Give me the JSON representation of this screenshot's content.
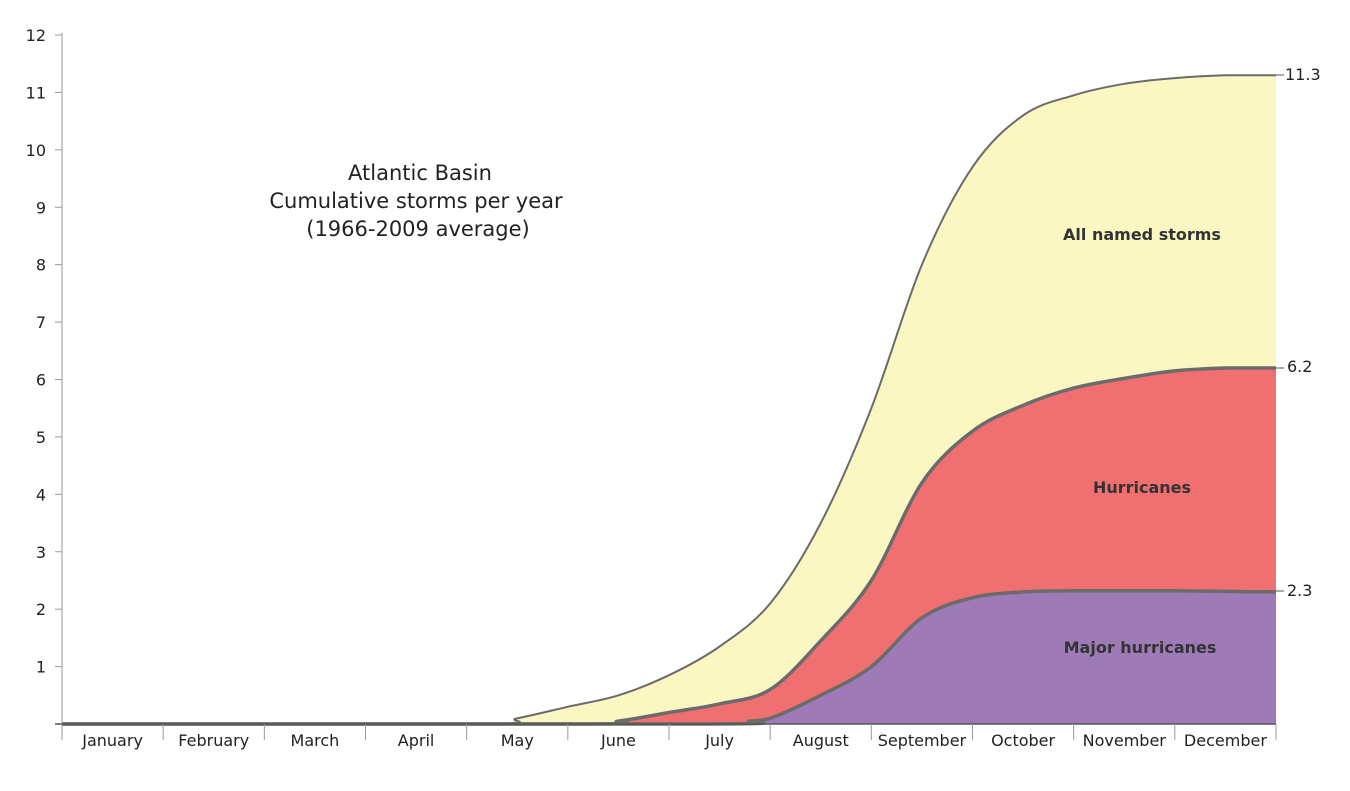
{
  "chart_data": {
    "type": "area",
    "stacked": false,
    "title_lines": [
      "Atlantic Basin",
      "Cumulative storms per year",
      "(1966-2009 average)"
    ],
    "xlabel": "",
    "ylabel": "",
    "categories": [
      "January",
      "February",
      "March",
      "April",
      "May",
      "June",
      "July",
      "August",
      "September",
      "October",
      "November",
      "December"
    ],
    "ylim": [
      0,
      12
    ],
    "y_ticks": [
      1,
      2,
      3,
      4,
      5,
      6,
      7,
      8,
      9,
      10,
      11,
      12
    ],
    "grid": false,
    "series": [
      {
        "name": "All named storms",
        "color": "#fbf7c2",
        "x": [
          0,
          4.1,
          4.5,
          5,
          5.5,
          6,
          6.5,
          7,
          7.5,
          8,
          8.5,
          9,
          9.5,
          10,
          10.5,
          11,
          11.5,
          12
        ],
        "values": [
          0,
          0,
          0.1,
          0.3,
          0.5,
          0.85,
          1.35,
          2.1,
          3.5,
          5.5,
          8.0,
          9.7,
          10.6,
          10.95,
          11.15,
          11.25,
          11.3,
          11.3
        ]
      },
      {
        "name": "Hurricanes",
        "color": "#f07072",
        "x": [
          0,
          5.1,
          5.5,
          6,
          6.5,
          7,
          7.5,
          8,
          8.5,
          9,
          9.5,
          10,
          10.5,
          11,
          11.5,
          12
        ],
        "values": [
          0,
          0,
          0.05,
          0.2,
          0.35,
          0.6,
          1.45,
          2.5,
          4.2,
          5.1,
          5.55,
          5.85,
          6.02,
          6.15,
          6.2,
          6.2
        ]
      },
      {
        "name": "Major hurricanes",
        "color": "#9e7bb6",
        "x": [
          0,
          6.3,
          6.8,
          7,
          7.5,
          8,
          8.5,
          9,
          9.5,
          10,
          10.5,
          11,
          11.5,
          12
        ],
        "values": [
          0,
          0,
          0.05,
          0.1,
          0.5,
          1.0,
          1.85,
          2.2,
          2.3,
          2.32,
          2.32,
          2.32,
          2.31,
          2.3
        ]
      }
    ],
    "end_labels": [
      "11.3",
      "6.2",
      "2.3"
    ],
    "region_labels": [
      "All named storms",
      "Hurricanes",
      "Major hurricanes"
    ],
    "colors": {
      "outline": "#6b6b6b",
      "axis": "#9a9a9a"
    }
  }
}
